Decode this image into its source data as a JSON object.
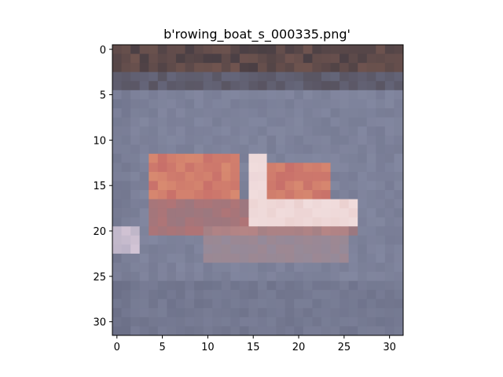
{
  "figure": {
    "title": "b'rowing_boat_s_000335.png'"
  },
  "image": {
    "description_class": "rowing boat",
    "grid_size": 32,
    "dominant_colors": {
      "water": "#8a8fa8",
      "water_dark": "#6c7088",
      "shore": "#4a3f44",
      "shore_warm": "#7a5a52",
      "boat_white": "#f0dcdc",
      "boat_red": "#c8706a",
      "boat_orange": "#d88a70"
    }
  },
  "axes": {
    "x_ticks": [
      "0",
      "5",
      "10",
      "15",
      "20",
      "25",
      "30"
    ],
    "y_ticks": [
      "0",
      "5",
      "10",
      "15",
      "20",
      "25",
      "30"
    ]
  }
}
